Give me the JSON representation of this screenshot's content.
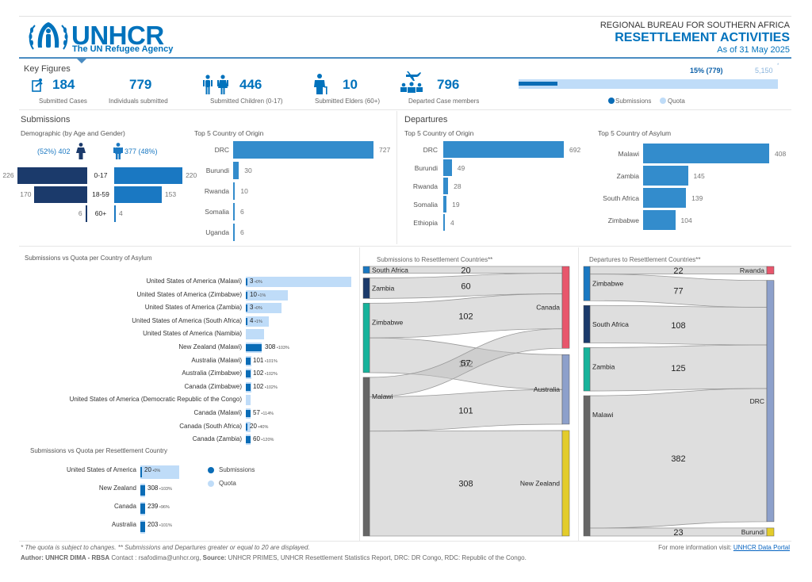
{
  "header": {
    "org": "UNHCR",
    "org_sub": "The UN Refugee Agency",
    "bureau": "REGIONAL BUREAU FOR SOUTHERN AFRICA",
    "title": "RESETTLEMENT ACTIVITIES",
    "date": "As of 31 May 2025"
  },
  "key_figures": {
    "title": "Key Figures",
    "items": [
      {
        "icon": "submitted-case-icon",
        "value": "184",
        "label": "Submitted Cases"
      },
      {
        "icon": "",
        "value": "779",
        "label": "Individuals submitted"
      },
      {
        "icon": "children-icon",
        "value": "446",
        "label": "Submitted Children (0-17)"
      },
      {
        "icon": "elder-icon",
        "value": "10",
        "label": "Submitted Elders (60+)"
      },
      {
        "icon": "departure-plane-icon",
        "value": "796",
        "label": "Departed Case members"
      }
    ],
    "progress": {
      "percent_label": "15% (779)",
      "quota_label": "5,150",
      "quota_mark": "*",
      "submissions": 779,
      "quota": 5150,
      "fraction": 0.15,
      "legend_submissions": "Submissions",
      "legend_quota": "Quota",
      "color_submissions": "#0a6cb6",
      "color_quota": "#bfdcf8"
    }
  },
  "submissions": {
    "title": "Submissions",
    "demographic": {
      "title": "Demographic (by Age and Gender)",
      "female_label": "(52%) 402",
      "male_label": "377 (48%)",
      "rows": [
        {
          "age": "0-17",
          "female": 226,
          "male": 220
        },
        {
          "age": "18-59",
          "female": 170,
          "male": 153
        },
        {
          "age": "60+",
          "female": 6,
          "male": 4
        }
      ],
      "female_color": "#1b3a6b",
      "male_color": "#1a78c2"
    },
    "origin": {
      "title": "Top 5 Country of Origin",
      "rows": [
        {
          "label": "DRC",
          "value": 727
        },
        {
          "label": "Burundi",
          "value": 30
        },
        {
          "label": "Rwanda",
          "value": 10
        },
        {
          "label": "Somalia",
          "value": 6
        },
        {
          "label": "Uganda",
          "value": 6
        }
      ]
    }
  },
  "departures": {
    "title": "Departures",
    "origin": {
      "title": "Top 5 Country of Origin",
      "rows": [
        {
          "label": "DRC",
          "value": 692
        },
        {
          "label": "Burundi",
          "value": 49
        },
        {
          "label": "Rwanda",
          "value": 28
        },
        {
          "label": "Somalia",
          "value": 19
        },
        {
          "label": "Ethiopia",
          "value": 4
        }
      ]
    },
    "asylum": {
      "title": "Top 5 Country of Asylum",
      "rows": [
        {
          "label": "Malawi",
          "value": 408
        },
        {
          "label": "Zambia",
          "value": 145
        },
        {
          "label": "South Africa",
          "value": 139
        },
        {
          "label": "Zimbabwe",
          "value": 104
        }
      ]
    }
  },
  "quota_asylum": {
    "title": "Submissions vs Quota per Country of Asylum",
    "rows": [
      {
        "label": "United States of America (Malawi)",
        "sub": 3,
        "pct": "0%",
        "quota_rel": 1.0
      },
      {
        "label": "United States of America (Zimbabwe)",
        "sub": 10,
        "pct": "1%",
        "quota_rel": 0.4
      },
      {
        "label": "United States of America (Zambia)",
        "sub": 3,
        "pct": "0%",
        "quota_rel": 0.34
      },
      {
        "label": "United States of America (South Africa)",
        "sub": 4,
        "pct": "1%",
        "quota_rel": 0.22
      },
      {
        "label": "United States of America (Namibia)",
        "sub": null,
        "pct": "",
        "quota_rel": 0.17
      },
      {
        "label": "New Zealand (Malawi)",
        "sub": 308,
        "pct": "103%",
        "quota_rel": 0.15
      },
      {
        "label": "Australia (Malawi)",
        "sub": 101,
        "pct": "101%",
        "quota_rel": 0.05
      },
      {
        "label": "Australia (Zimbabwe)",
        "sub": 102,
        "pct": "102%",
        "quota_rel": 0.05
      },
      {
        "label": "Canada (Zimbabwe)",
        "sub": 102,
        "pct": "102%",
        "quota_rel": 0.05
      },
      {
        "label": "United States of America (Democratic Republic of the Congo)",
        "sub": null,
        "pct": "",
        "quota_rel": 0.04
      },
      {
        "label": "Canada (Malawi)",
        "sub": 57,
        "pct": "114%",
        "quota_rel": 0.02
      },
      {
        "label": "Canada (South Africa)",
        "sub": 20,
        "pct": "40%",
        "quota_rel": 0.02
      },
      {
        "label": "Canada (Zambia)",
        "sub": 60,
        "pct": "120%",
        "quota_rel": 0.02
      }
    ]
  },
  "quota_country": {
    "title": "Submissions vs Quota per Resettlement Country",
    "rows": [
      {
        "label": "United States of America",
        "sub": 20,
        "pct": "0%",
        "quota_rel": 1.0
      },
      {
        "label": "New Zealand",
        "sub": 308,
        "pct": "103%",
        "quota_rel": 0.06
      },
      {
        "label": "Canada",
        "sub": 239,
        "pct": "96%",
        "quota_rel": 0.06
      },
      {
        "label": "Australia",
        "sub": 203,
        "pct": "101%",
        "quota_rel": 0.06
      }
    ],
    "legend_submissions": "Submissions",
    "legend_quota": "Quota"
  },
  "chart_data": [
    {
      "type": "sankey",
      "title": "Submissions to Resettlement Countries**",
      "sources": [
        {
          "name": "South Africa",
          "color": "#1a78c2"
        },
        {
          "name": "Zambia",
          "color": "#1b3a6b"
        },
        {
          "name": "Zimbabwe",
          "color": "#17b39b"
        },
        {
          "name": "Malawi",
          "color": "#666666"
        }
      ],
      "targets": [
        {
          "name": "Canada",
          "color": "#e8566c"
        },
        {
          "name": "Australia",
          "color": "#8da0cb"
        },
        {
          "name": "New Zealand",
          "color": "#e3cc2b"
        }
      ],
      "links": [
        {
          "source": "South Africa",
          "target": "Canada",
          "value": 20
        },
        {
          "source": "Zambia",
          "target": "Canada",
          "value": 60
        },
        {
          "source": "Zimbabwe",
          "target": "Canada",
          "value": 102
        },
        {
          "source": "Zimbabwe",
          "target": "Australia",
          "value": 102
        },
        {
          "source": "Malawi",
          "target": "Canada",
          "value": 57
        },
        {
          "source": "Malawi",
          "target": "Australia",
          "value": 101
        },
        {
          "source": "Malawi",
          "target": "New Zealand",
          "value": 308
        }
      ]
    },
    {
      "type": "sankey",
      "title": "Departures to Resettlement Countries**",
      "sources": [
        {
          "name": "Zimbabwe",
          "color": "#1a78c2"
        },
        {
          "name": "South Africa",
          "color": "#1b3a6b"
        },
        {
          "name": "Zambia",
          "color": "#17b39b"
        },
        {
          "name": "Malawi",
          "color": "#666666"
        }
      ],
      "targets": [
        {
          "name": "Rwanda",
          "color": "#e8566c"
        },
        {
          "name": "DRC",
          "color": "#8da0cb"
        },
        {
          "name": "Burundi",
          "color": "#e3cc2b"
        }
      ],
      "links": [
        {
          "source": "Zimbabwe",
          "target": "Rwanda",
          "value": 22
        },
        {
          "source": "Zimbabwe",
          "target": "DRC",
          "value": 77
        },
        {
          "source": "South Africa",
          "target": "DRC",
          "value": 108
        },
        {
          "source": "Zambia",
          "target": "DRC",
          "value": 125
        },
        {
          "source": "Malawi",
          "target": "DRC",
          "value": 382
        },
        {
          "source": "Malawi",
          "target": "Burundi",
          "value": 23
        }
      ]
    }
  ],
  "footer": {
    "note": "* The quota is subject to changes.  ** Submissions and Departures greater or equal to 20 are displayed.",
    "author_label": "Author: UNHCR DIMA - RBSA",
    "contact": " Contact : rsafodima@unhcr.org, ",
    "source_label": "Source:",
    "source": " UNHCR PRIMES, UNHCR Resettlement Statistics Report, DRC: DR Congo, RDC: Republic of the Congo.",
    "more_info": "For more information visit: ",
    "link": "UNHCR Data Portal"
  }
}
